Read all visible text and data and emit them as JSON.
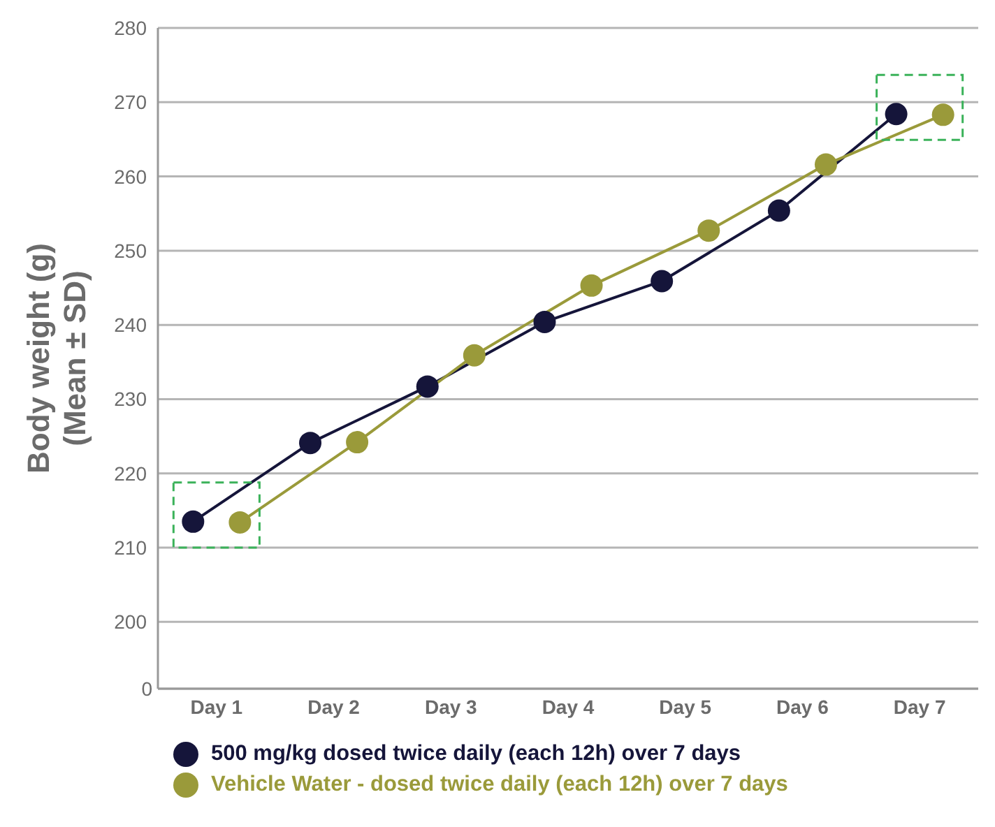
{
  "chart_data": {
    "type": "line",
    "ylabel": "Body weight (g)\n(Mean ± SD)",
    "categories": [
      "Day 1",
      "Day 2",
      "Day 3",
      "Day 4",
      "Day 5",
      "Day 6",
      "Day 7"
    ],
    "series": [
      {
        "name": "500 mg/kg dosed twice daily (each 12h) over 7 days",
        "color": "#15153a",
        "values": [
          213.5,
          224.1,
          231.7,
          240.4,
          245.9,
          255.4,
          268.4
        ]
      },
      {
        "name": "Vehicle Water - dosed twice daily (each 12h) over 7 days",
        "color": "#9a9a3a",
        "values": [
          213.4,
          224.2,
          235.9,
          245.3,
          252.7,
          261.6,
          268.3
        ]
      }
    ],
    "annotations": [
      "0"
    ],
    "ylim": [
      191,
      280
    ],
    "yticks": [
      200,
      210,
      220,
      230,
      240,
      250,
      260,
      270,
      280
    ],
    "grid": "y",
    "legend": "bottom",
    "marker": "circle",
    "line_style": "solid"
  }
}
